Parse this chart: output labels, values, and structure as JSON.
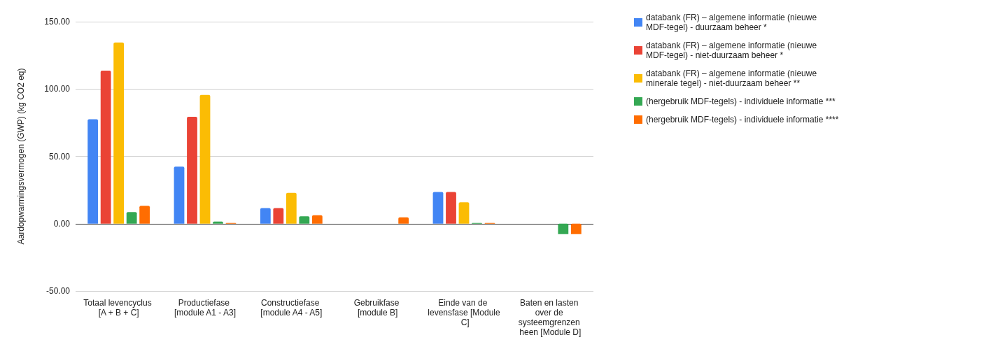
{
  "chart_data": {
    "type": "bar",
    "ylabel": "Aardopwarmingsvermogen (GWP) (kg CO2 eq)",
    "categories": [
      "Totaal levencyclus [A + B + C]",
      "Productiefase [module A1 - A3]",
      "Constructiefase [module A4 - A5]",
      "Gebruikfase [module B]",
      "Einde van de levensfase [Module C]",
      "Baten en lasten over de systeemgrenzen heen [Module D]"
    ],
    "series": [
      {
        "name": "databank (FR) – algemene informatie (nieuwe MDF-tegel) - duurzaam beheer *",
        "color": "#4285f4",
        "values": [
          77.5,
          42.4,
          11.5,
          0,
          23.5,
          0
        ]
      },
      {
        "name": "databank (FR) – algemene informatie (nieuwe MDF-tegel) - niet-duurzaam beheer *",
        "color": "#ea4335",
        "values": [
          113.6,
          79.4,
          11.5,
          0,
          23.5,
          0
        ]
      },
      {
        "name": "databank (FR) – algemene informatie (nieuwe minerale tegel) - niet-duurzaam beheer **",
        "color": "#fbbc04",
        "values": [
          134.6,
          95.6,
          22.8,
          0,
          15.9,
          0
        ]
      },
      {
        "name": "(hergebruik MDF-tegels) - individuele informatie ***",
        "color": "#34a853",
        "values": [
          8.6,
          1.5,
          5.4,
          0,
          0.5,
          -7.8
        ]
      },
      {
        "name": "(hergebruik MDF-tegels) - individuele informatie ****",
        "color": "#ff6d01",
        "values": [
          13.2,
          0.5,
          6.2,
          4.7,
          0.5,
          -7.8
        ]
      }
    ],
    "ylim": [
      -50,
      150
    ],
    "yticks": [
      {
        "value": -50,
        "label": "-50.00"
      },
      {
        "value": 0,
        "label": "0.00"
      },
      {
        "value": 50,
        "label": "50.00"
      },
      {
        "value": 100,
        "label": "100.00"
      },
      {
        "value": 150,
        "label": "150.00"
      }
    ],
    "grid": "y",
    "legend": "right"
  }
}
